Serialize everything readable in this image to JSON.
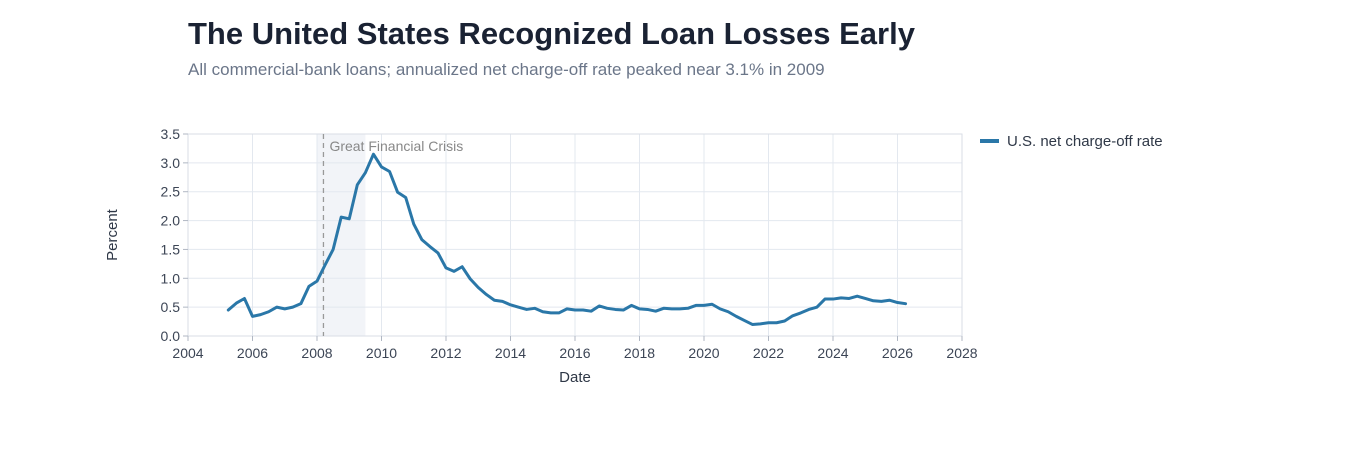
{
  "title": "The United States Recognized Loan Losses Early",
  "subtitle": "All commercial-bank loans; annualized net charge-off rate peaked near 3.1% in 2009",
  "colors": {
    "line": "#2a77a8",
    "grid": "#e3e8ef",
    "shade": "#f2f4f8",
    "marker": "#999999"
  },
  "chart_data": {
    "type": "line",
    "xlabel": "Date",
    "ylabel": "Percent",
    "xlim": [
      2004,
      2028
    ],
    "ylim": [
      0,
      3.5
    ],
    "xticks": [
      "2004",
      "2006",
      "2008",
      "2010",
      "2012",
      "2014",
      "2016",
      "2018",
      "2020",
      "2022",
      "2024",
      "2026",
      "2028"
    ],
    "yticks": [
      "0.0",
      "0.5",
      "1.0",
      "1.5",
      "2.0",
      "2.5",
      "3.0",
      "3.5"
    ],
    "grid": true,
    "legend_position": "top-right outside",
    "shaded_region": {
      "x": [
        2008.0,
        2009.5
      ]
    },
    "vertical_marker": {
      "x": 2008.2,
      "label": "Great Financial Crisis"
    },
    "series": [
      {
        "name": "U.S. net charge-off rate",
        "x": [
          2005.25,
          2005.5,
          2005.75,
          2006.0,
          2006.25,
          2006.5,
          2006.75,
          2007.0,
          2007.25,
          2007.5,
          2007.75,
          2008.0,
          2008.25,
          2008.5,
          2008.75,
          2009.0,
          2009.25,
          2009.5,
          2009.75,
          2010.0,
          2010.25,
          2010.5,
          2010.75,
          2011.0,
          2011.25,
          2011.5,
          2011.75,
          2012.0,
          2012.25,
          2012.5,
          2012.75,
          2013.0,
          2013.25,
          2013.5,
          2013.75,
          2014.0,
          2014.25,
          2014.5,
          2014.75,
          2015.0,
          2015.25,
          2015.5,
          2015.75,
          2016.0,
          2016.25,
          2016.5,
          2016.75,
          2017.0,
          2017.25,
          2017.5,
          2017.75,
          2018.0,
          2018.25,
          2018.5,
          2018.75,
          2019.0,
          2019.25,
          2019.5,
          2019.75,
          2020.0,
          2020.25,
          2020.5,
          2020.75,
          2021.0,
          2021.25,
          2021.5,
          2021.75,
          2022.0,
          2022.25,
          2022.5,
          2022.75,
          2023.0,
          2023.25,
          2023.5,
          2023.75,
          2024.0,
          2024.25,
          2024.5,
          2024.75,
          2025.0,
          2025.25,
          2025.5,
          2025.75,
          2026.0,
          2026.25
        ],
        "values": [
          0.45,
          0.57,
          0.65,
          0.34,
          0.37,
          0.42,
          0.5,
          0.47,
          0.5,
          0.56,
          0.86,
          0.95,
          1.23,
          1.5,
          2.06,
          2.03,
          2.62,
          2.83,
          3.15,
          2.93,
          2.85,
          2.49,
          2.4,
          1.94,
          1.67,
          1.55,
          1.44,
          1.18,
          1.12,
          1.2,
          0.99,
          0.84,
          0.72,
          0.62,
          0.6,
          0.54,
          0.5,
          0.46,
          0.48,
          0.42,
          0.4,
          0.4,
          0.47,
          0.45,
          0.45,
          0.43,
          0.52,
          0.48,
          0.46,
          0.45,
          0.53,
          0.47,
          0.46,
          0.43,
          0.48,
          0.47,
          0.47,
          0.48,
          0.53,
          0.53,
          0.55,
          0.47,
          0.42,
          0.34,
          0.27,
          0.2,
          0.21,
          0.23,
          0.23,
          0.26,
          0.35,
          0.4,
          0.46,
          0.5,
          0.64,
          0.64,
          0.66,
          0.65,
          0.69,
          0.65,
          0.61,
          0.6,
          0.62,
          0.58,
          0.56
        ]
      }
    ]
  }
}
